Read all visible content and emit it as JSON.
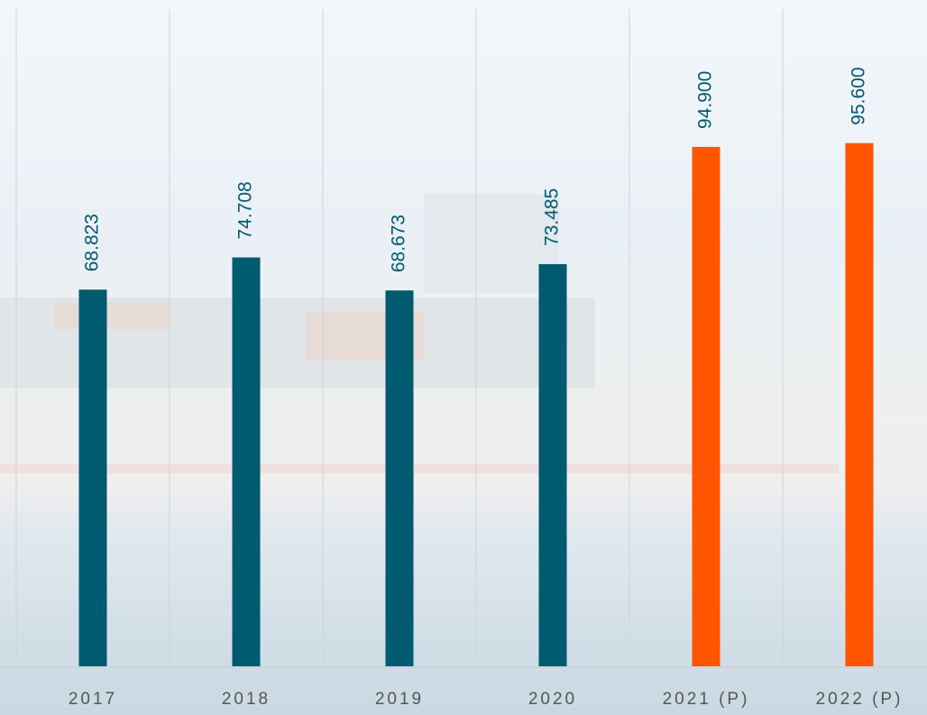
{
  "chart_data": {
    "type": "bar",
    "categories": [
      "2017",
      "2018",
      "2019",
      "2020",
      "2021 (P)",
      "2022 (P)"
    ],
    "values": [
      68.823,
      74.708,
      68.673,
      73.485,
      94.9,
      95.6
    ],
    "value_labels": [
      "68.823",
      "74.708",
      "68.673",
      "73.485",
      "94.900",
      "95.600"
    ],
    "colors": [
      "#005a70",
      "#005a70",
      "#005a70",
      "#005a70",
      "#ff5400",
      "#ff5400"
    ],
    "label_color": "#005a70",
    "grid": true
  }
}
